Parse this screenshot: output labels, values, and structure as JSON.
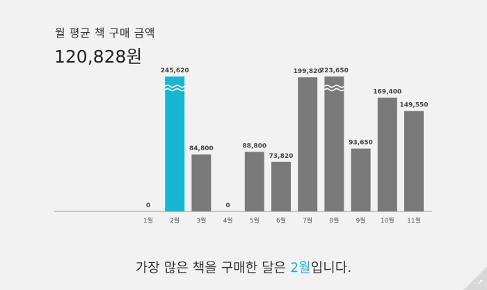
{
  "header": {
    "subtitle": "월 평균 책 구매 금액",
    "total": "120,828원"
  },
  "summary": {
    "prefix": "가장 많은 책을 구매한 달은 ",
    "highlight": "2월",
    "suffix": "입니다."
  },
  "colors": {
    "highlight_bar": "#1ab5d3",
    "bar": "#7a7a7a",
    "axis": "#999999",
    "label": "#444444",
    "summary_highlight": "#1ab5d3"
  },
  "corner_icon": "curl-icon",
  "chart_data": {
    "type": "bar",
    "title": "",
    "xlabel": "",
    "ylabel": "",
    "categories": [
      "1월",
      "2월",
      "3월",
      "4월",
      "5월",
      "6월",
      "7월",
      "8월",
      "9월",
      "10월",
      "11월"
    ],
    "values": [
      0,
      245620,
      84800,
      0,
      88800,
      73820,
      199820,
      223650,
      93650,
      169400,
      149550
    ],
    "value_labels": [
      "0",
      "245,620",
      "84,800",
      "0",
      "88,800",
      "73,820",
      "199,820",
      "223,650",
      "93,650",
      "169,400",
      "149,550"
    ],
    "highlight_index": 1,
    "axis_break": true,
    "axis_break_bars": [
      1,
      7
    ],
    "grid": false,
    "legend": "none"
  }
}
